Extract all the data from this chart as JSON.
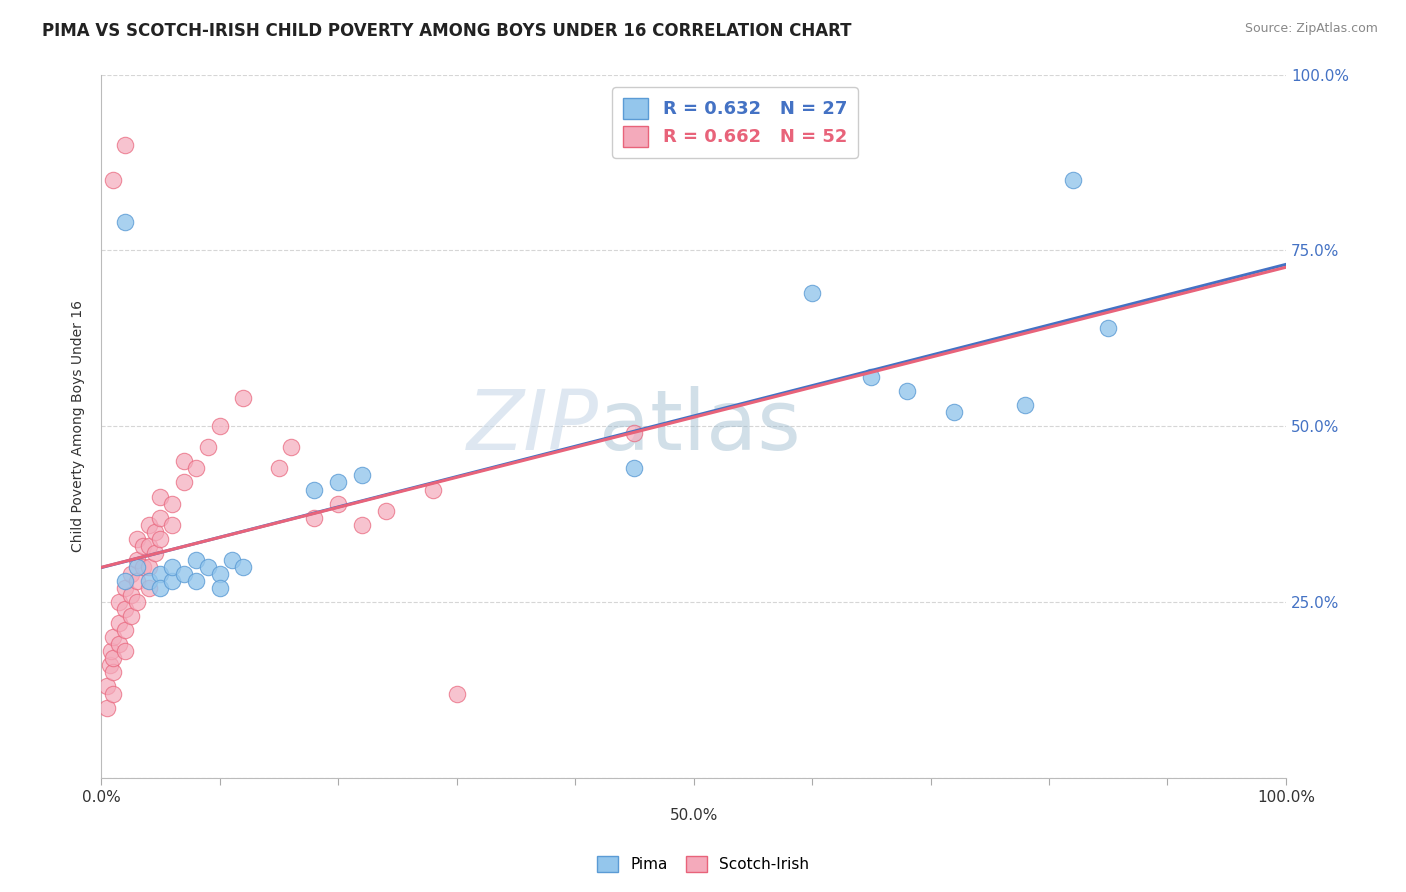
{
  "title": "PIMA VS SCOTCH-IRISH CHILD POVERTY AMONG BOYS UNDER 16 CORRELATION CHART",
  "source": "Source: ZipAtlas.com",
  "ylabel": "Child Poverty Among Boys Under 16",
  "xlim": [
    0.0,
    1.0
  ],
  "ylim": [
    0.0,
    1.0
  ],
  "xtick_positions": [
    0.0,
    0.1,
    0.2,
    0.3,
    0.4,
    0.5,
    0.6,
    0.7,
    0.8,
    0.9,
    1.0
  ],
  "xticklabels": [
    "0.0%",
    "",
    "",
    "",
    "",
    "",
    "",
    "",
    "",
    "",
    "100.0%"
  ],
  "ytick_positions": [
    0.0,
    0.25,
    0.5,
    0.75,
    1.0
  ],
  "right_yticklabels": [
    "",
    "25.0%",
    "50.0%",
    "75.0%",
    "100.0%"
  ],
  "grid_color": "#cccccc",
  "background_color": "#ffffff",
  "pima_color": "#94C6EC",
  "scotch_color": "#F4AABB",
  "pima_edge_color": "#5B9BD5",
  "scotch_edge_color": "#E8637A",
  "pima_line_color": "#4472C4",
  "scotch_line_color": "#E8637A",
  "pima_R": 0.632,
  "pima_N": 27,
  "scotch_R": 0.662,
  "scotch_N": 52,
  "pima_label": "Pima",
  "scotch_label": "Scotch-Irish",
  "pima_points": [
    [
      0.02,
      0.28
    ],
    [
      0.03,
      0.3
    ],
    [
      0.04,
      0.28
    ],
    [
      0.05,
      0.29
    ],
    [
      0.05,
      0.27
    ],
    [
      0.06,
      0.28
    ],
    [
      0.06,
      0.3
    ],
    [
      0.07,
      0.29
    ],
    [
      0.08,
      0.28
    ],
    [
      0.08,
      0.31
    ],
    [
      0.09,
      0.3
    ],
    [
      0.1,
      0.29
    ],
    [
      0.1,
      0.27
    ],
    [
      0.11,
      0.31
    ],
    [
      0.12,
      0.3
    ],
    [
      0.02,
      0.79
    ],
    [
      0.18,
      0.41
    ],
    [
      0.2,
      0.42
    ],
    [
      0.22,
      0.43
    ],
    [
      0.45,
      0.44
    ],
    [
      0.6,
      0.69
    ],
    [
      0.65,
      0.57
    ],
    [
      0.68,
      0.55
    ],
    [
      0.72,
      0.52
    ],
    [
      0.78,
      0.53
    ],
    [
      0.82,
      0.85
    ],
    [
      0.85,
      0.64
    ]
  ],
  "scotch_points": [
    [
      0.005,
      0.1
    ],
    [
      0.005,
      0.13
    ],
    [
      0.007,
      0.16
    ],
    [
      0.008,
      0.18
    ],
    [
      0.01,
      0.12
    ],
    [
      0.01,
      0.15
    ],
    [
      0.01,
      0.17
    ],
    [
      0.01,
      0.2
    ],
    [
      0.015,
      0.19
    ],
    [
      0.015,
      0.22
    ],
    [
      0.015,
      0.25
    ],
    [
      0.02,
      0.18
    ],
    [
      0.02,
      0.21
    ],
    [
      0.02,
      0.24
    ],
    [
      0.02,
      0.27
    ],
    [
      0.025,
      0.23
    ],
    [
      0.025,
      0.26
    ],
    [
      0.025,
      0.29
    ],
    [
      0.03,
      0.25
    ],
    [
      0.03,
      0.28
    ],
    [
      0.03,
      0.31
    ],
    [
      0.03,
      0.34
    ],
    [
      0.035,
      0.3
    ],
    [
      0.035,
      0.33
    ],
    [
      0.04,
      0.27
    ],
    [
      0.04,
      0.3
    ],
    [
      0.04,
      0.33
    ],
    [
      0.04,
      0.36
    ],
    [
      0.045,
      0.32
    ],
    [
      0.045,
      0.35
    ],
    [
      0.05,
      0.34
    ],
    [
      0.05,
      0.37
    ],
    [
      0.05,
      0.4
    ],
    [
      0.06,
      0.36
    ],
    [
      0.06,
      0.39
    ],
    [
      0.07,
      0.42
    ],
    [
      0.07,
      0.45
    ],
    [
      0.08,
      0.44
    ],
    [
      0.09,
      0.47
    ],
    [
      0.1,
      0.5
    ],
    [
      0.12,
      0.54
    ],
    [
      0.01,
      0.85
    ],
    [
      0.02,
      0.9
    ],
    [
      0.15,
      0.44
    ],
    [
      0.16,
      0.47
    ],
    [
      0.18,
      0.37
    ],
    [
      0.2,
      0.39
    ],
    [
      0.22,
      0.36
    ],
    [
      0.24,
      0.38
    ],
    [
      0.28,
      0.41
    ],
    [
      0.3,
      0.12
    ],
    [
      0.45,
      0.49
    ]
  ]
}
